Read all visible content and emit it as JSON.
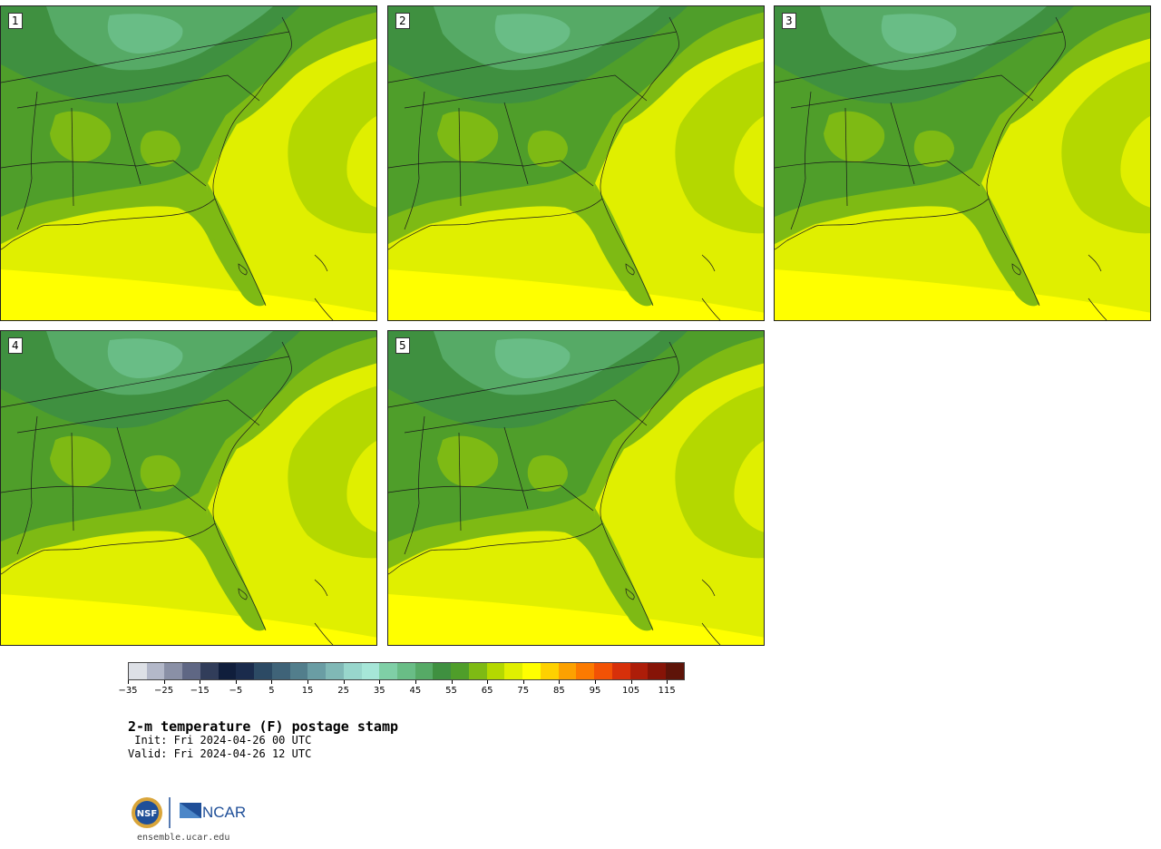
{
  "panels": [
    {
      "label": "1"
    },
    {
      "label": "2"
    },
    {
      "label": "3"
    },
    {
      "label": "4"
    },
    {
      "label": "5"
    }
  ],
  "colorbar": {
    "colors": [
      "#dde0e6",
      "#b3b8c9",
      "#8a90a6",
      "#5f6784",
      "#313d5a",
      "#101e3c",
      "#1a2b4c",
      "#2c4a64",
      "#3f6378",
      "#527e8c",
      "#6a9da4",
      "#80b8b6",
      "#98d6cc",
      "#a6e6d8",
      "#7fcfa6",
      "#69bd86",
      "#56aa66",
      "#3f9040",
      "#4f9e2a",
      "#7eba14",
      "#b4d800",
      "#e0ef00",
      "#ffff00",
      "#fed100",
      "#fca100",
      "#fb7a00",
      "#f25205",
      "#d7300a",
      "#ad1d09",
      "#861407",
      "#5e1409"
    ],
    "tick_labels": [
      "−35",
      "−25",
      "−15",
      "−5",
      "5",
      "15",
      "25",
      "35",
      "45",
      "55",
      "65",
      "75",
      "85",
      "95",
      "105",
      "115"
    ]
  },
  "title": "2-m temperature (F) postage stamp",
  "init": " Init: Fri 2024-04-26 00 UTC",
  "valid": "Valid: Fri 2024-04-26 12 UTC",
  "logo": {
    "left_text": "NSF",
    "right_text": "NCAR"
  },
  "website": "ensemble.ucar.edu"
}
